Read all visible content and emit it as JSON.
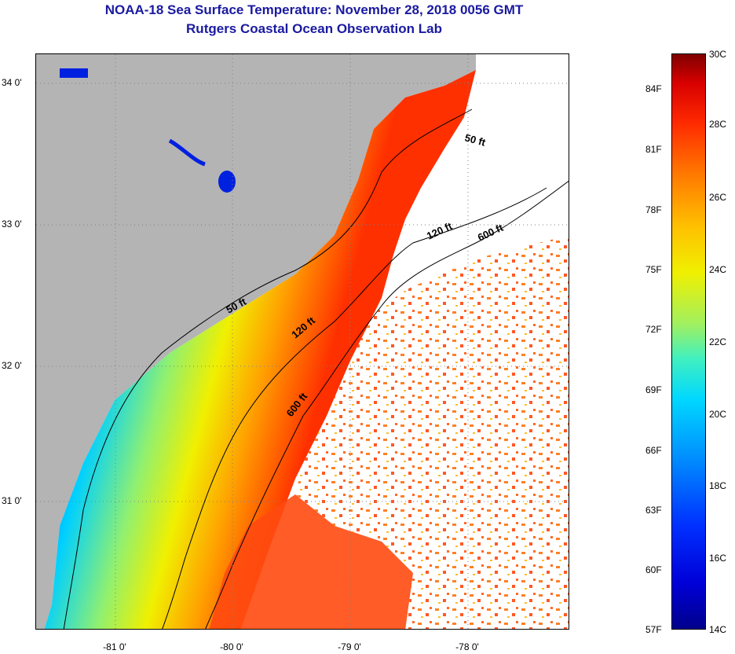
{
  "title": {
    "line1": "NOAA-18 Sea Surface Temperature:  November 28, 2018 0056 GMT",
    "line2": "Rutgers Coastal Ocean Observation Lab"
  },
  "map": {
    "lat_labels": [
      "34 0'",
      "33 0'",
      "32 0'",
      "31 0'"
    ],
    "lon_labels": [
      "-81 0'",
      "-80 0'",
      "-79 0'",
      "-78 0'"
    ],
    "contours": {
      "c50_north": "50 ft",
      "c120_north": "120 ft",
      "c600_north": "600 ft",
      "c50_mid": "50 ft",
      "c120_mid": "120 ft",
      "c600_mid": "600 ft"
    },
    "colors": {
      "land": "#b4b4b4",
      "nodata": "#ffffff",
      "coastal": "#0020e0",
      "nearshore": "#00c8ff",
      "shelf": "#f0f000",
      "offshore": "#ff4000"
    }
  },
  "colorbar": {
    "fahrenheit": [
      "84F",
      "81F",
      "78F",
      "75F",
      "72F",
      "69F",
      "66F",
      "63F",
      "60F",
      "57F"
    ],
    "celsius": [
      "30C",
      "28C",
      "26C",
      "24C",
      "22C",
      "20C",
      "18C",
      "16C",
      "14C"
    ]
  }
}
